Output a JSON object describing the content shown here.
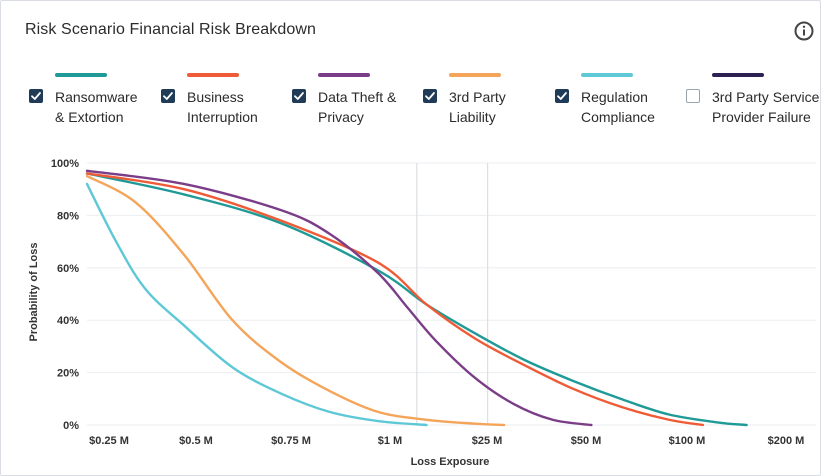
{
  "title": "Risk Scenario Financial Risk Breakdown",
  "info_icon": "info-circle-icon",
  "legend": [
    {
      "label": "Ransomware\n& Extortion",
      "color": "#1f9a96",
      "checked": true
    },
    {
      "label": "Business\nInterruption",
      "color": "#ef5b36",
      "checked": true
    },
    {
      "label": "Data Theft &\nPrivacy",
      "color": "#7b3d88",
      "checked": true
    },
    {
      "label": "3rd Party\nLiability",
      "color": "#f4a55a",
      "checked": true
    },
    {
      "label": "Regulation\nCompliance",
      "color": "#5fc8d6",
      "checked": true
    },
    {
      "label": "3rd Party Service\nProvider Failure",
      "color": "#2c2150",
      "checked": false
    }
  ],
  "chart_data": {
    "type": "line",
    "title": "Risk Scenario Financial Risk Breakdown",
    "xlabel": "Loss Exposure",
    "ylabel": "Probability of Loss",
    "x_ticks": [
      "$0.25 M",
      "$0.5 M",
      "$0.75 M",
      "$1 M",
      "$25 M",
      "$50 M",
      "$100 M",
      "$200 M"
    ],
    "y_ticks": [
      "0%",
      "20%",
      "40%",
      "60%",
      "80%",
      "100%"
    ],
    "ylim": [
      0,
      100
    ],
    "grid": "vertical lines at $1 M and $25 M; horizontal gridlines",
    "series": [
      {
        "name": "Ransomware & Extortion",
        "color": "#1f9a96",
        "x": [
          0,
          1,
          2,
          3,
          3.5,
          4,
          4.5,
          5,
          5.5,
          6,
          6.5,
          6.8
        ],
        "y": [
          96,
          88,
          77,
          59,
          46,
          35,
          25,
          17,
          10,
          4,
          1,
          0
        ]
      },
      {
        "name": "Business Interruption",
        "color": "#ef5b36",
        "x": [
          0,
          1,
          2,
          3,
          3.5,
          4,
          4.5,
          5,
          5.5,
          6,
          6.35
        ],
        "y": [
          96,
          90,
          78,
          62,
          46,
          33,
          23,
          14,
          7,
          2,
          0
        ]
      },
      {
        "name": "Data Theft & Privacy",
        "color": "#7b3d88",
        "x": [
          0,
          1,
          2,
          2.5,
          3,
          3.3,
          3.6,
          4,
          4.4,
          4.8,
          5.2
        ],
        "y": [
          97,
          92,
          82,
          73,
          58,
          45,
          32,
          18,
          8,
          2,
          0
        ]
      },
      {
        "name": "3rd Party Liability",
        "color": "#f4a55a",
        "x": [
          0,
          0.5,
          1,
          1.5,
          2,
          2.5,
          3,
          3.5,
          4,
          4.3
        ],
        "y": [
          95,
          85,
          65,
          40,
          24,
          13,
          5,
          2,
          0.5,
          0
        ]
      },
      {
        "name": "Regulation Compliance",
        "color": "#5fc8d6",
        "x": [
          0,
          0.3,
          0.6,
          1,
          1.5,
          2,
          2.5,
          3,
          3.5
        ],
        "y": [
          92,
          70,
          52,
          38,
          22,
          12,
          5,
          1.5,
          0
        ]
      }
    ]
  }
}
